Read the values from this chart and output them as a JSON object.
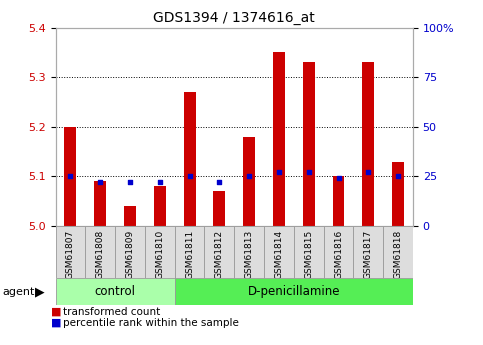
{
  "title": "GDS1394 / 1374616_at",
  "samples": [
    "GSM61807",
    "GSM61808",
    "GSM61809",
    "GSM61810",
    "GSM61811",
    "GSM61812",
    "GSM61813",
    "GSM61814",
    "GSM61815",
    "GSM61816",
    "GSM61817",
    "GSM61818"
  ],
  "transformed_count": [
    5.2,
    5.09,
    5.04,
    5.08,
    5.27,
    5.07,
    5.18,
    5.35,
    5.33,
    5.1,
    5.33,
    5.13
  ],
  "percentile_rank": [
    25,
    22,
    22,
    22,
    25,
    22,
    25,
    27,
    27,
    24,
    27,
    25
  ],
  "n_control": 4,
  "ylim_left": [
    5.0,
    5.4
  ],
  "ylim_right": [
    0,
    100
  ],
  "yticks_left": [
    5.0,
    5.1,
    5.2,
    5.3,
    5.4
  ],
  "yticks_right": [
    0,
    25,
    50,
    75,
    100
  ],
  "ytick_labels_right": [
    "0",
    "25",
    "50",
    "75",
    "100%"
  ],
  "bar_color": "#cc0000",
  "percentile_color": "#0000cc",
  "bg_plot": "#ffffff",
  "left_tick_color": "#cc0000",
  "right_tick_color": "#0000cc",
  "control_bg": "#aaffaa",
  "penicillamine_bg": "#55ee55",
  "sample_bg": "#dddddd",
  "agent_label": "agent",
  "legend_transformed": "transformed count",
  "legend_percentile": "percentile rank within the sample",
  "group_control": "control",
  "group_penicillamine": "D-penicillamine",
  "bar_width": 0.4
}
